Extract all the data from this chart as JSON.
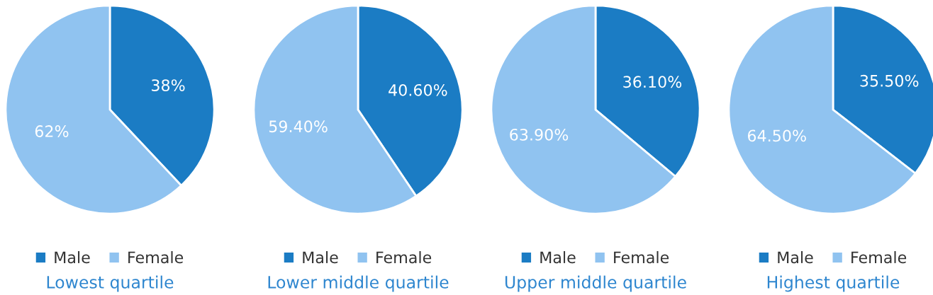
{
  "chart_data": [
    {
      "type": "pie",
      "title": "Lowest quartile",
      "categories": [
        "Male",
        "Female"
      ],
      "values": [
        38,
        62
      ],
      "value_labels": [
        "38%",
        "62%"
      ],
      "colors": [
        "#1b7cc4",
        "#90c3f0"
      ],
      "legend": "bottom"
    },
    {
      "type": "pie",
      "title": "Lower middle quartile",
      "categories": [
        "Male",
        "Female"
      ],
      "values": [
        40.6,
        59.4
      ],
      "value_labels": [
        "40.60%",
        "59.40%"
      ],
      "colors": [
        "#1b7cc4",
        "#90c3f0"
      ],
      "legend": "bottom"
    },
    {
      "type": "pie",
      "title": "Upper middle quartile",
      "categories": [
        "Male",
        "Female"
      ],
      "values": [
        36.1,
        63.9
      ],
      "value_labels": [
        "36.10%",
        "63.90%"
      ],
      "colors": [
        "#1b7cc4",
        "#90c3f0"
      ],
      "legend": "bottom"
    },
    {
      "type": "pie",
      "title": "Highest quartile",
      "categories": [
        "Male",
        "Female"
      ],
      "values": [
        35.5,
        64.5
      ],
      "value_labels": [
        "35.50%",
        "64.50%"
      ],
      "colors": [
        "#1b7cc4",
        "#90c3f0"
      ],
      "legend": "bottom"
    }
  ]
}
